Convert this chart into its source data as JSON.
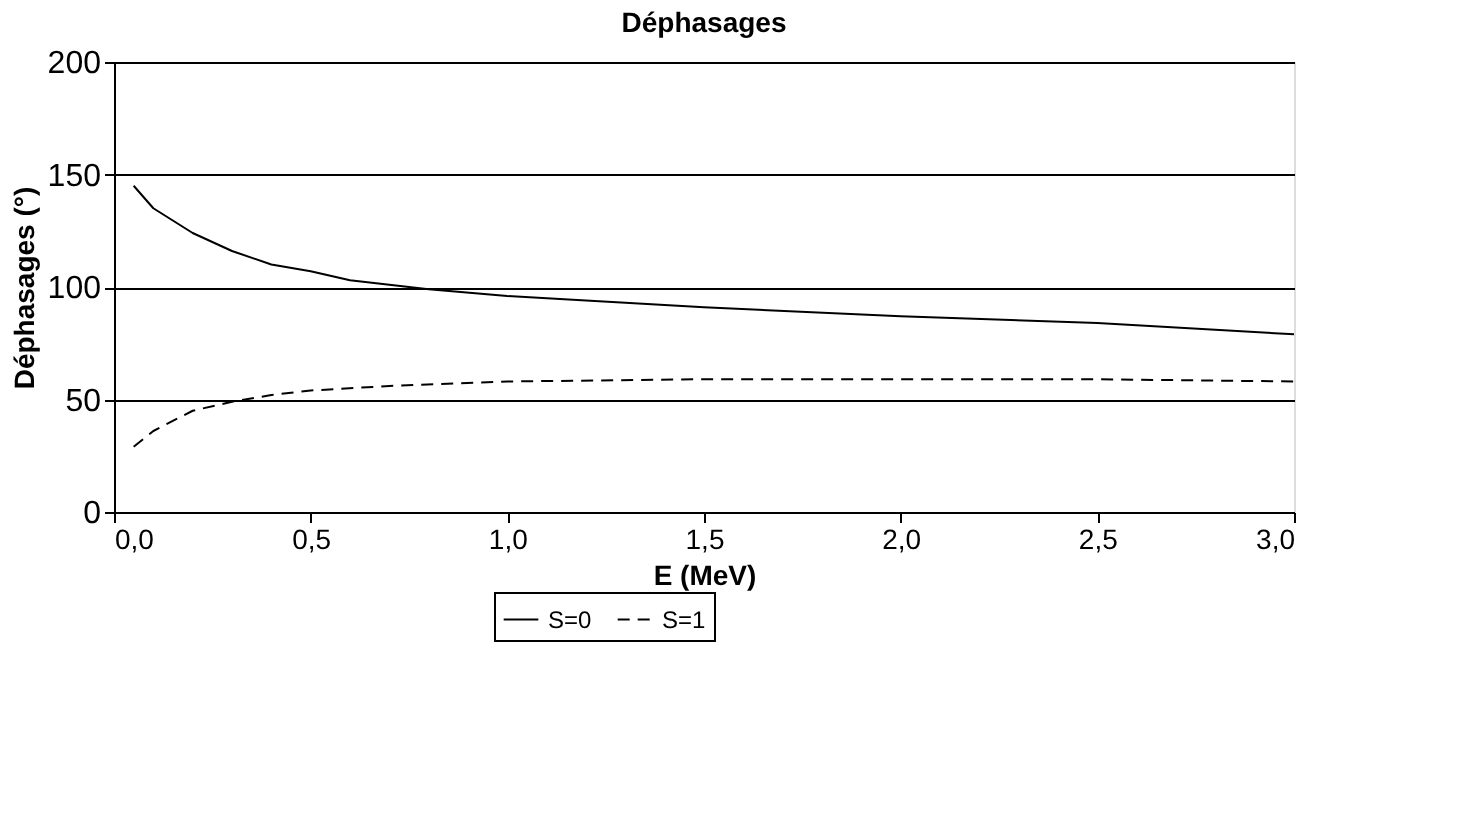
{
  "chart_data": {
    "type": "line",
    "title": "Déphasages",
    "xlabel": "E (MeV)",
    "ylabel": "Déphasages (°)",
    "xlim": [
      0,
      3
    ],
    "ylim": [
      0,
      200
    ],
    "xticks": [
      {
        "value": 0,
        "label": "0,0"
      },
      {
        "value": 0.5,
        "label": "0,5"
      },
      {
        "value": 1,
        "label": "1,0"
      },
      {
        "value": 1.5,
        "label": "1,5"
      },
      {
        "value": 2,
        "label": "2,0"
      },
      {
        "value": 2.5,
        "label": "2,5"
      },
      {
        "value": 3,
        "label": "3,0"
      }
    ],
    "yticks": [
      0,
      50,
      100,
      150,
      200
    ],
    "grid": "y",
    "legend": "bottom",
    "marker": "none",
    "series": [
      {
        "name": "S=0",
        "color": "#000000",
        "line_style": "solid",
        "x": [
          0.05,
          0.1,
          0.2,
          0.3,
          0.4,
          0.5,
          0.6,
          0.7,
          0.8,
          1.0,
          1.2,
          1.5,
          2.0,
          2.5,
          3.0
        ],
        "values": [
          145,
          135,
          124,
          116,
          110,
          107,
          103,
          101,
          99,
          96,
          94,
          91,
          87,
          84,
          79
        ]
      },
      {
        "name": "S=1",
        "color": "#000000",
        "line_style": "dashed",
        "x": [
          0.05,
          0.1,
          0.2,
          0.3,
          0.4,
          0.5,
          0.7,
          1.0,
          1.5,
          2.0,
          2.5,
          3.0
        ],
        "values": [
          29,
          36,
          45,
          49,
          52,
          54,
          56,
          58,
          59,
          59,
          59,
          58
        ]
      }
    ]
  }
}
